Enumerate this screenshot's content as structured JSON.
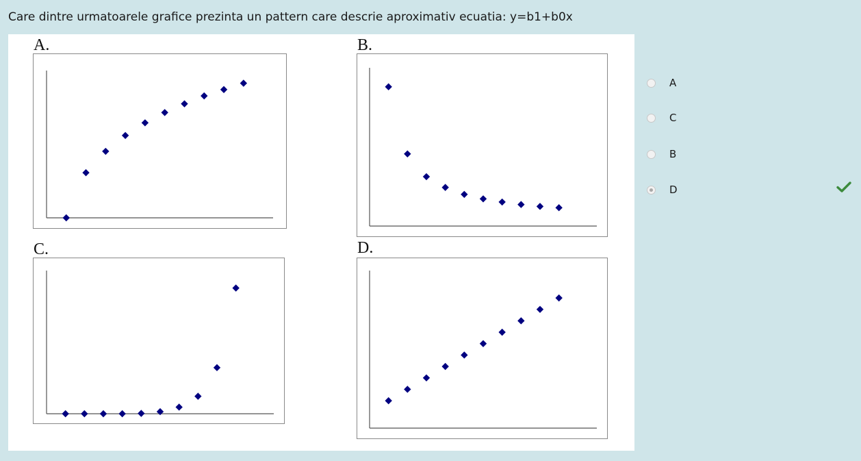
{
  "question": {
    "text": "Care dintre urmatoarele grafice prezinta un pattern care descrie aproximativ ecuatia: y=b1+b0x"
  },
  "options": [
    {
      "label": "A",
      "selected": false
    },
    {
      "label": "C",
      "selected": false
    },
    {
      "label": "B",
      "selected": false
    },
    {
      "label": "D",
      "selected": true
    }
  ],
  "feedback": {
    "icon": "check-icon",
    "color": "#3c8a3c"
  },
  "colors": {
    "marker": "#000080",
    "axis": "#555555",
    "frame": "#888888"
  },
  "chart_data": [
    {
      "type": "scatter",
      "title": "A.",
      "marker": "diamond",
      "x": [
        1,
        2,
        3,
        4,
        5,
        6,
        7,
        8,
        9,
        10
      ],
      "y": [
        0,
        2.85,
        4.2,
        5.2,
        6.0,
        6.65,
        7.2,
        7.7,
        8.1,
        8.5
      ],
      "xlim": [
        0,
        11.5
      ],
      "ylim": [
        0,
        9.3
      ],
      "grid": false
    },
    {
      "type": "scatter",
      "title": "B.",
      "marker": "diamond",
      "x": [
        1,
        2,
        3,
        4,
        5,
        6,
        7,
        8,
        9,
        10
      ],
      "y": [
        10,
        4.7,
        2.9,
        2.05,
        1.5,
        1.15,
        0.9,
        0.7,
        0.55,
        0.45
      ],
      "xlim": [
        0,
        12
      ],
      "ylim": [
        -1,
        11.5
      ],
      "grid": false
    },
    {
      "type": "scatter",
      "title": "C.",
      "marker": "diamond",
      "x": [
        1,
        2,
        3,
        4,
        5,
        6,
        7,
        8,
        9,
        10
      ],
      "y": [
        0,
        0,
        0,
        0,
        0.05,
        0.3,
        0.95,
        2.5,
        6.6,
        18
      ],
      "xlim": [
        0,
        12
      ],
      "ylim": [
        0,
        20.5
      ],
      "grid": false
    },
    {
      "type": "scatter",
      "title": "D.",
      "marker": "diamond",
      "x": [
        1,
        2,
        3,
        4,
        5,
        6,
        7,
        8,
        9,
        10
      ],
      "y": [
        1,
        2,
        3,
        4,
        5,
        6,
        7,
        8,
        9,
        10
      ],
      "xlim": [
        0,
        12
      ],
      "ylim": [
        -1.4,
        12.4
      ],
      "grid": false
    }
  ]
}
